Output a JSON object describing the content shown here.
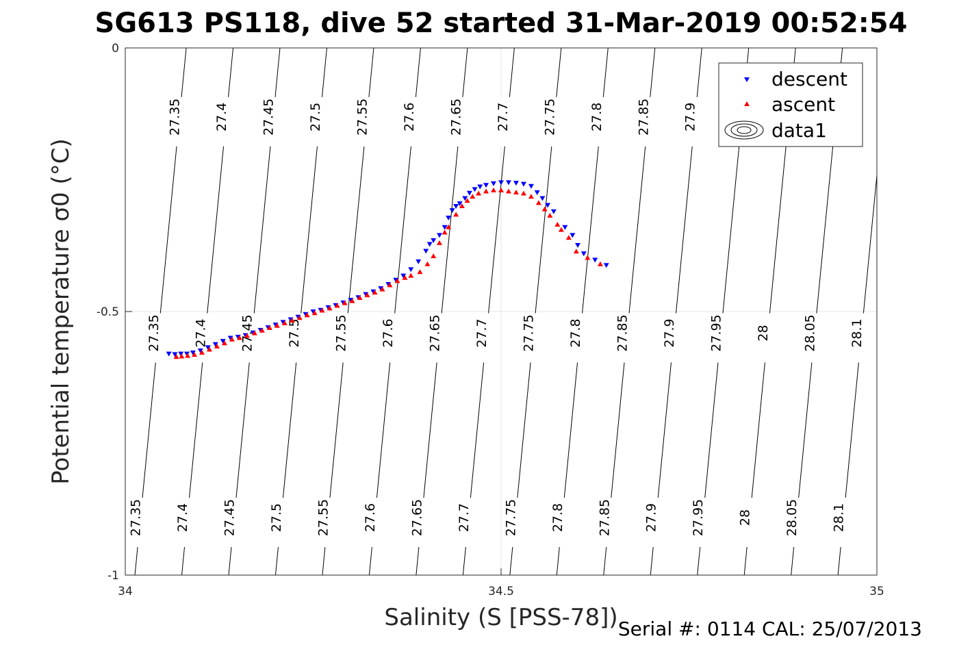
{
  "chart_data": {
    "type": "scatter",
    "title": "SG613 PS118, dive 52 started 31-Mar-2019 00:52:54",
    "xlabel": "Salinity (S [PSS-78])",
    "ylabel": "Potential temperature σ0 (°C)",
    "xlim": [
      34,
      35
    ],
    "ylim": [
      -1,
      0
    ],
    "xticks": [
      "34",
      "34.5",
      "35"
    ],
    "yticks": [
      "0",
      "-0.5",
      "-1"
    ],
    "grid": true,
    "legend_position": "top-right",
    "series": [
      {
        "name": "descent",
        "marker": "triangle-down",
        "color": "#0000ff",
        "points": [
          [
            34.058,
            -0.58
          ],
          [
            34.066,
            -0.581
          ],
          [
            34.074,
            -0.58
          ],
          [
            34.082,
            -0.58
          ],
          [
            34.09,
            -0.578
          ],
          [
            34.1,
            -0.574
          ],
          [
            34.11,
            -0.568
          ],
          [
            34.12,
            -0.562
          ],
          [
            34.13,
            -0.556
          ],
          [
            34.14,
            -0.55
          ],
          [
            34.15,
            -0.548
          ],
          [
            34.16,
            -0.545
          ],
          [
            34.17,
            -0.54
          ],
          [
            34.18,
            -0.535
          ],
          [
            34.19,
            -0.53
          ],
          [
            34.2,
            -0.525
          ],
          [
            34.21,
            -0.52
          ],
          [
            34.22,
            -0.515
          ],
          [
            34.23,
            -0.51
          ],
          [
            34.24,
            -0.505
          ],
          [
            34.25,
            -0.5
          ],
          [
            34.26,
            -0.497
          ],
          [
            34.27,
            -0.492
          ],
          [
            34.28,
            -0.488
          ],
          [
            34.29,
            -0.483
          ],
          [
            34.3,
            -0.478
          ],
          [
            34.31,
            -0.473
          ],
          [
            34.32,
            -0.467
          ],
          [
            34.33,
            -0.462
          ],
          [
            34.34,
            -0.456
          ],
          [
            34.35,
            -0.448
          ],
          [
            34.36,
            -0.44
          ],
          [
            34.37,
            -0.432
          ],
          [
            34.38,
            -0.42
          ],
          [
            34.39,
            -0.405
          ],
          [
            34.4,
            -0.385
          ],
          [
            34.405,
            -0.372
          ],
          [
            34.41,
            -0.365
          ],
          [
            34.418,
            -0.355
          ],
          [
            34.425,
            -0.34
          ],
          [
            34.43,
            -0.322
          ],
          [
            34.435,
            -0.308
          ],
          [
            34.44,
            -0.3
          ],
          [
            34.445,
            -0.295
          ],
          [
            34.452,
            -0.285
          ],
          [
            34.458,
            -0.275
          ],
          [
            34.465,
            -0.268
          ],
          [
            34.472,
            -0.263
          ],
          [
            34.48,
            -0.26
          ],
          [
            34.49,
            -0.257
          ],
          [
            34.5,
            -0.255
          ],
          [
            34.51,
            -0.255
          ],
          [
            34.52,
            -0.256
          ],
          [
            34.53,
            -0.258
          ],
          [
            34.54,
            -0.262
          ],
          [
            34.548,
            -0.274
          ],
          [
            34.555,
            -0.285
          ],
          [
            34.562,
            -0.298
          ],
          [
            34.57,
            -0.31
          ],
          [
            34.585,
            -0.34
          ],
          [
            34.595,
            -0.355
          ],
          [
            34.602,
            -0.374
          ],
          [
            34.61,
            -0.39
          ],
          [
            34.625,
            -0.402
          ],
          [
            34.64,
            -0.412
          ]
        ]
      },
      {
        "name": "ascent",
        "marker": "triangle-up",
        "color": "#ff0000",
        "points": [
          [
            34.068,
            -0.586
          ],
          [
            34.075,
            -0.585
          ],
          [
            34.083,
            -0.584
          ],
          [
            34.092,
            -0.582
          ],
          [
            34.102,
            -0.578
          ],
          [
            34.112,
            -0.572
          ],
          [
            34.122,
            -0.566
          ],
          [
            34.132,
            -0.56
          ],
          [
            34.142,
            -0.553
          ],
          [
            34.152,
            -0.55
          ],
          [
            34.162,
            -0.546
          ],
          [
            34.172,
            -0.541
          ],
          [
            34.182,
            -0.536
          ],
          [
            34.192,
            -0.531
          ],
          [
            34.202,
            -0.527
          ],
          [
            34.212,
            -0.522
          ],
          [
            34.222,
            -0.517
          ],
          [
            34.232,
            -0.512
          ],
          [
            34.242,
            -0.507
          ],
          [
            34.252,
            -0.503
          ],
          [
            34.262,
            -0.498
          ],
          [
            34.272,
            -0.494
          ],
          [
            34.282,
            -0.489
          ],
          [
            34.292,
            -0.484
          ],
          [
            34.302,
            -0.48
          ],
          [
            34.312,
            -0.474
          ],
          [
            34.322,
            -0.469
          ],
          [
            34.332,
            -0.464
          ],
          [
            34.342,
            -0.458
          ],
          [
            34.352,
            -0.45
          ],
          [
            34.362,
            -0.442
          ],
          [
            34.372,
            -0.436
          ],
          [
            34.38,
            -0.432
          ],
          [
            34.392,
            -0.425
          ],
          [
            34.402,
            -0.41
          ],
          [
            34.41,
            -0.395
          ],
          [
            34.418,
            -0.37
          ],
          [
            34.425,
            -0.35
          ],
          [
            34.43,
            -0.34
          ],
          [
            34.44,
            -0.316
          ],
          [
            34.448,
            -0.3
          ],
          [
            34.455,
            -0.29
          ],
          [
            34.462,
            -0.282
          ],
          [
            34.47,
            -0.276
          ],
          [
            34.48,
            -0.272
          ],
          [
            34.49,
            -0.27
          ],
          [
            34.5,
            -0.27
          ],
          [
            34.51,
            -0.272
          ],
          [
            34.52,
            -0.274
          ],
          [
            34.53,
            -0.276
          ],
          [
            34.54,
            -0.282
          ],
          [
            34.55,
            -0.294
          ],
          [
            34.558,
            -0.306
          ],
          [
            34.565,
            -0.318
          ],
          [
            34.575,
            -0.335
          ],
          [
            34.58,
            -0.345
          ],
          [
            34.59,
            -0.36
          ],
          [
            34.6,
            -0.386
          ],
          [
            34.615,
            -0.398
          ],
          [
            34.632,
            -0.41
          ]
        ]
      },
      {
        "name": "data1",
        "marker": "contour",
        "color": "#000000",
        "levels": [
          "27.35",
          "27.4",
          "27.45",
          "27.5",
          "27.55",
          "27.6",
          "27.65",
          "27.7",
          "27.75",
          "27.8",
          "27.85",
          "27.9",
          "27.95",
          "28",
          "28.05",
          "28.1"
        ]
      }
    ]
  },
  "footer": {
    "calibration": "Serial #: 0114  CAL: 25/07/2013"
  }
}
